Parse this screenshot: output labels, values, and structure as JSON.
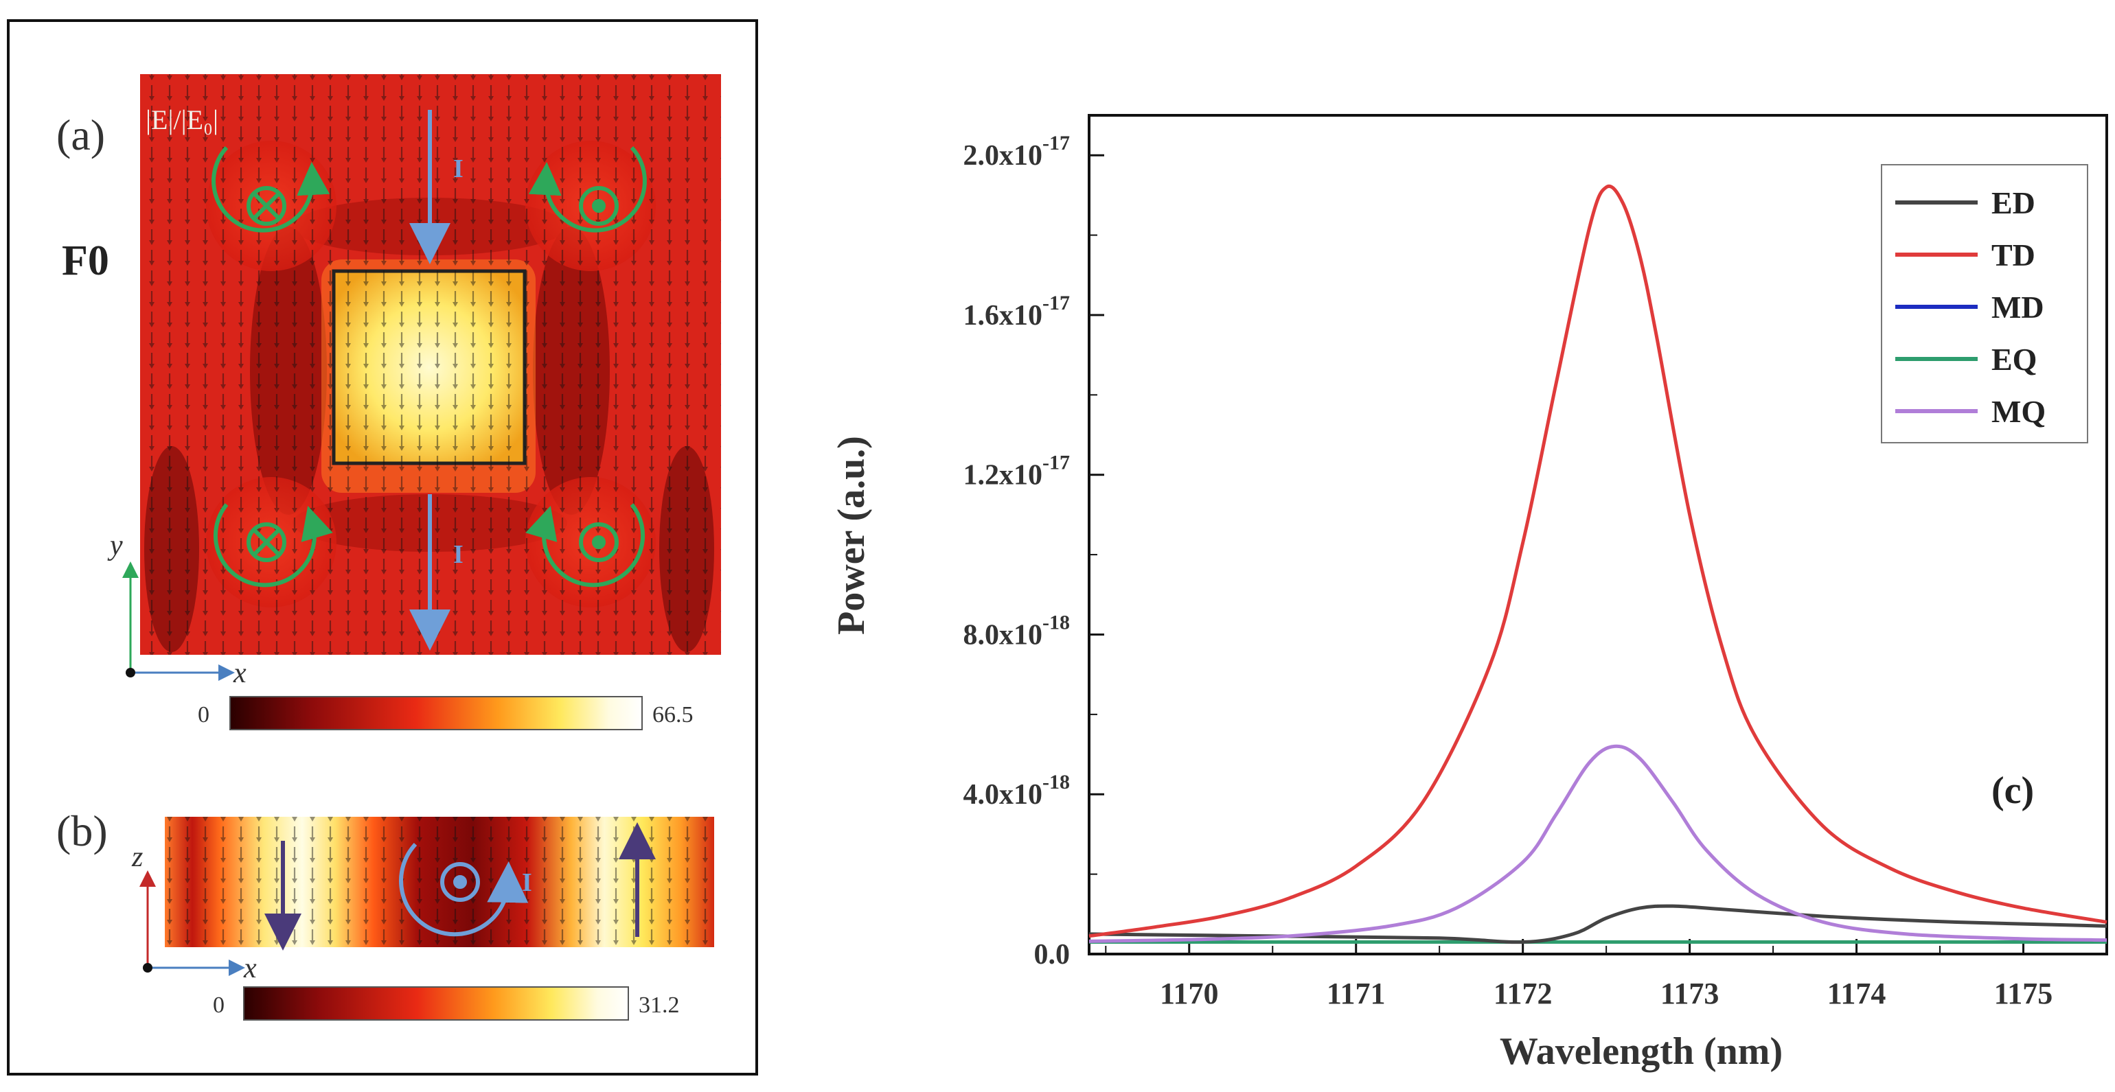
{
  "panel_left": {
    "a": {
      "label": "(a)",
      "mode_label": "F0",
      "field_label": "|E|/|E₀|",
      "current_label": "I",
      "axis_x": "x",
      "axis_y": "y",
      "colorbar_min": "0",
      "colorbar_max": "66.5",
      "vortices": [
        "into-page",
        "out-of-page",
        "into-page",
        "out-of-page"
      ]
    },
    "b": {
      "label": "(b)",
      "current_label": "I",
      "axis_x": "x",
      "axis_z": "z",
      "colorbar_min": "0",
      "colorbar_max": "31.2"
    },
    "colors": {
      "field_low": "#5e0a06",
      "field_mid": "#e8261a",
      "field_high": "#fff3a0",
      "current": "#6f9fd8",
      "vortex": "#2ea85a"
    }
  },
  "chart_data": {
    "type": "line",
    "panel_label": "(c)",
    "xlabel": "Wavelength (nm)",
    "ylabel": "Power (a.u.)",
    "xlim": [
      1169.4,
      1175.5
    ],
    "ylim": [
      0,
      2.1e-17
    ],
    "x_ticks": [
      1170,
      1171,
      1172,
      1173,
      1174,
      1175
    ],
    "x_tick_labels": [
      "1170",
      "1171",
      "1172",
      "1173",
      "1174",
      "1175"
    ],
    "y_ticks": [
      0,
      4e-18,
      8e-18,
      1.2e-17,
      1.6e-17,
      2e-17
    ],
    "y_tick_mantissa": [
      "0.0",
      "4.0x10",
      "8.0x10",
      "1.2x10",
      "1.6x10",
      "2.0x10"
    ],
    "y_tick_exponent": [
      "",
      "-18",
      "-18",
      "-17",
      "-17",
      "-17"
    ],
    "legend_position": "top-right",
    "series": [
      {
        "name": "ED",
        "color": "#444444",
        "x": [
          1169.4,
          1170.5,
          1171.5,
          1172.0,
          1172.3,
          1172.5,
          1172.7,
          1172.9,
          1173.2,
          1173.6,
          1174.0,
          1174.6,
          1175.5
        ],
        "y": [
          5e-19,
          4.5e-19,
          4e-19,
          3e-19,
          5e-19,
          9e-19,
          1.15e-18,
          1.2e-18,
          1.12e-18,
          1e-18,
          9e-19,
          8e-19,
          7e-19
        ]
      },
      {
        "name": "TD",
        "color": "#e03b3b",
        "x": [
          1169.4,
          1169.8,
          1170.2,
          1170.6,
          1171.0,
          1171.4,
          1171.8,
          1172.0,
          1172.2,
          1172.4,
          1172.5,
          1172.6,
          1172.7,
          1172.8,
          1173.0,
          1173.2,
          1173.4,
          1173.8,
          1174.2,
          1174.6,
          1175.0,
          1175.5
        ],
        "y": [
          4.5e-19,
          6.8e-19,
          9.5e-19,
          1.4e-18,
          2.2e-18,
          3.8e-18,
          7.2e-18,
          1.03e-17,
          1.43e-17,
          1.82e-17,
          1.92e-17,
          1.88e-17,
          1.75e-17,
          1.55e-17,
          1.1e-17,
          7.6e-18,
          5.4e-18,
          3.2e-18,
          2.15e-18,
          1.55e-18,
          1.15e-18,
          8e-19
        ]
      },
      {
        "name": "MD",
        "color": "#1c2cc0",
        "x": [
          1169.4,
          1175.5
        ],
        "y": [
          3e-19,
          3e-19
        ]
      },
      {
        "name": "EQ",
        "color": "#2e9d6e",
        "x": [
          1169.4,
          1175.5
        ],
        "y": [
          3e-19,
          3e-19
        ]
      },
      {
        "name": "MQ",
        "color": "#b07ed8",
        "x": [
          1169.4,
          1170.0,
          1170.6,
          1171.2,
          1171.6,
          1172.0,
          1172.2,
          1172.4,
          1172.55,
          1172.7,
          1172.9,
          1173.1,
          1173.4,
          1173.8,
          1174.3,
          1175.0,
          1175.5
        ],
        "y": [
          3.2e-19,
          3.6e-19,
          4.5e-19,
          7e-19,
          1.15e-18,
          2.3e-18,
          3.5e-18,
          4.8e-18,
          5.2e-18,
          4.9e-18,
          3.8e-18,
          2.6e-18,
          1.5e-18,
          8e-19,
          5e-19,
          3.8e-19,
          3.5e-19
        ]
      }
    ]
  }
}
